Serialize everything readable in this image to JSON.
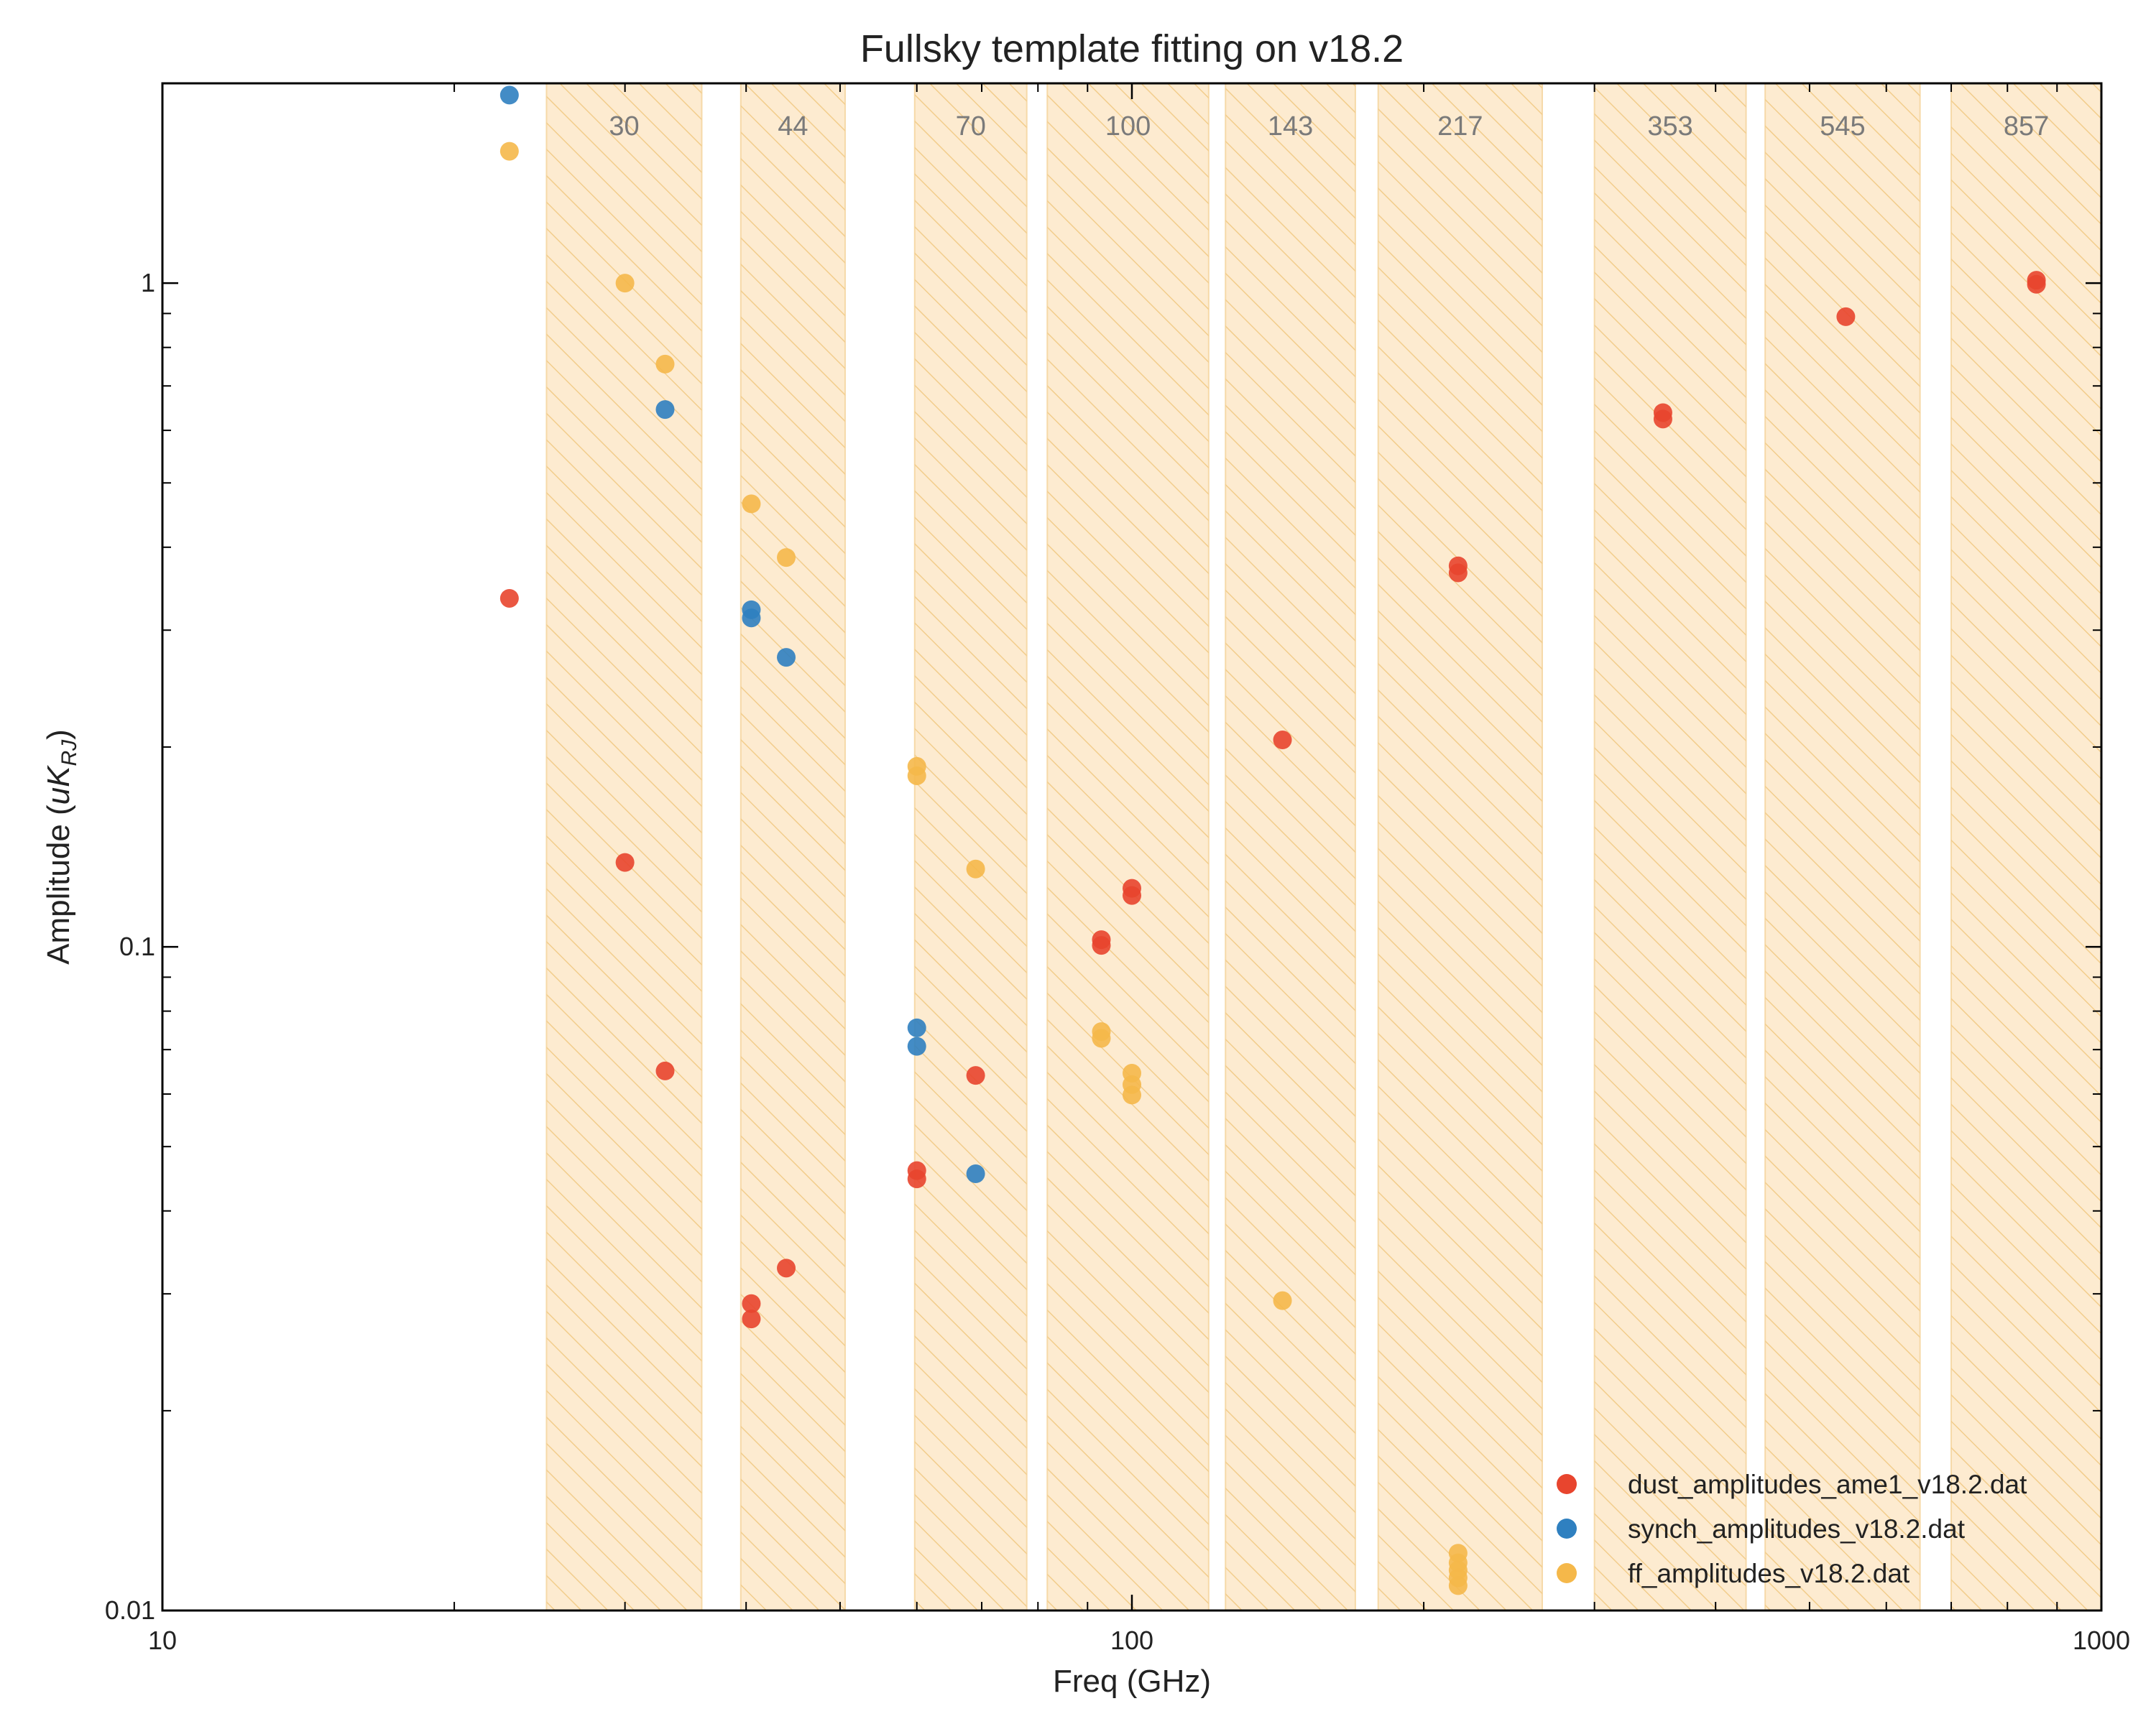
{
  "chart_data": {
    "type": "scatter",
    "title": "Fullsky template fitting on v18.2",
    "xlabel": "Freq (GHz)",
    "ylabel_main": "Amplitude (",
    "ylabel_var": "uK",
    "ylabel_sub": "RJ",
    "ylabel_end": ")",
    "xscale": "log",
    "yscale": "log",
    "xlim": [
      10,
      1000
    ],
    "ylim": [
      0.01,
      2
    ],
    "xticks": [
      {
        "value": 10,
        "label": "10"
      },
      {
        "value": 100,
        "label": "100"
      },
      {
        "value": 1000,
        "label": "1000"
      }
    ],
    "yticks": [
      {
        "value": 0.01,
        "label": "0.01"
      },
      {
        "value": 0.1,
        "label": "0.1"
      },
      {
        "value": 1,
        "label": "1"
      }
    ],
    "bands": [
      {
        "label": "30",
        "lo": 24.9,
        "hi": 36.0
      },
      {
        "label": "44",
        "lo": 39.5,
        "hi": 50.6
      },
      {
        "label": "70",
        "lo": 59.7,
        "hi": 77.9
      },
      {
        "label": "100",
        "lo": 81.8,
        "hi": 120.0
      },
      {
        "label": "143",
        "lo": 124.9,
        "hi": 170.0
      },
      {
        "label": "217",
        "lo": 179.5,
        "hi": 265.0
      },
      {
        "label": "353",
        "lo": 300.0,
        "hi": 430.0
      },
      {
        "label": "545",
        "lo": 450.0,
        "hi": 650.0
      },
      {
        "label": "857",
        "lo": 700.0,
        "hi": 1000.0
      }
    ],
    "legend_position": "bottom-right",
    "series": [
      {
        "name": "dust_amplitudes_ame1_v18.2.dat",
        "color": "#e8452e",
        "points": [
          {
            "x": 22.8,
            "y": 0.335
          },
          {
            "x": 30.0,
            "y": 0.134
          },
          {
            "x": 33.0,
            "y": 0.065
          },
          {
            "x": 40.5,
            "y": 0.029
          },
          {
            "x": 40.5,
            "y": 0.0275
          },
          {
            "x": 44.0,
            "y": 0.0328
          },
          {
            "x": 60.0,
            "y": 0.046
          },
          {
            "x": 60.0,
            "y": 0.0447
          },
          {
            "x": 69.0,
            "y": 0.064
          },
          {
            "x": 93.0,
            "y": 0.1025
          },
          {
            "x": 93.0,
            "y": 0.1005
          },
          {
            "x": 100.0,
            "y": 0.1225
          },
          {
            "x": 100.0,
            "y": 0.1195
          },
          {
            "x": 143.0,
            "y": 0.205
          },
          {
            "x": 217.0,
            "y": 0.375
          },
          {
            "x": 217.0,
            "y": 0.366
          },
          {
            "x": 353.0,
            "y": 0.638
          },
          {
            "x": 353.0,
            "y": 0.624
          },
          {
            "x": 545.0,
            "y": 0.89
          },
          {
            "x": 857.0,
            "y": 1.01
          },
          {
            "x": 857.0,
            "y": 0.996
          }
        ]
      },
      {
        "name": "synch_amplitudes_v18.2.dat",
        "color": "#2f80c0",
        "points": [
          {
            "x": 22.8,
            "y": 1.92
          },
          {
            "x": 33.0,
            "y": 0.645
          },
          {
            "x": 40.5,
            "y": 0.322
          },
          {
            "x": 40.5,
            "y": 0.313
          },
          {
            "x": 44.0,
            "y": 0.273
          },
          {
            "x": 60.0,
            "y": 0.0755
          },
          {
            "x": 60.0,
            "y": 0.0708
          },
          {
            "x": 69.0,
            "y": 0.0455
          }
        ]
      },
      {
        "name": "ff_amplitudes_v18.2.dat",
        "color": "#f5b84a",
        "points": [
          {
            "x": 22.8,
            "y": 1.58
          },
          {
            "x": 30.0,
            "y": 1.0
          },
          {
            "x": 33.0,
            "y": 0.755
          },
          {
            "x": 40.5,
            "y": 0.465
          },
          {
            "x": 44.0,
            "y": 0.386
          },
          {
            "x": 60.0,
            "y": 0.187
          },
          {
            "x": 60.0,
            "y": 0.181
          },
          {
            "x": 69.0,
            "y": 0.131
          },
          {
            "x": 93.0,
            "y": 0.0745
          },
          {
            "x": 93.0,
            "y": 0.0728
          },
          {
            "x": 100.0,
            "y": 0.0645
          },
          {
            "x": 100.0,
            "y": 0.062
          },
          {
            "x": 100.0,
            "y": 0.0598
          },
          {
            "x": 143.0,
            "y": 0.0293
          },
          {
            "x": 217.0,
            "y": 0.0122
          },
          {
            "x": 217.0,
            "y": 0.0118
          },
          {
            "x": 217.0,
            "y": 0.0115
          },
          {
            "x": 217.0,
            "y": 0.0112
          },
          {
            "x": 217.0,
            "y": 0.0109
          }
        ]
      }
    ]
  }
}
